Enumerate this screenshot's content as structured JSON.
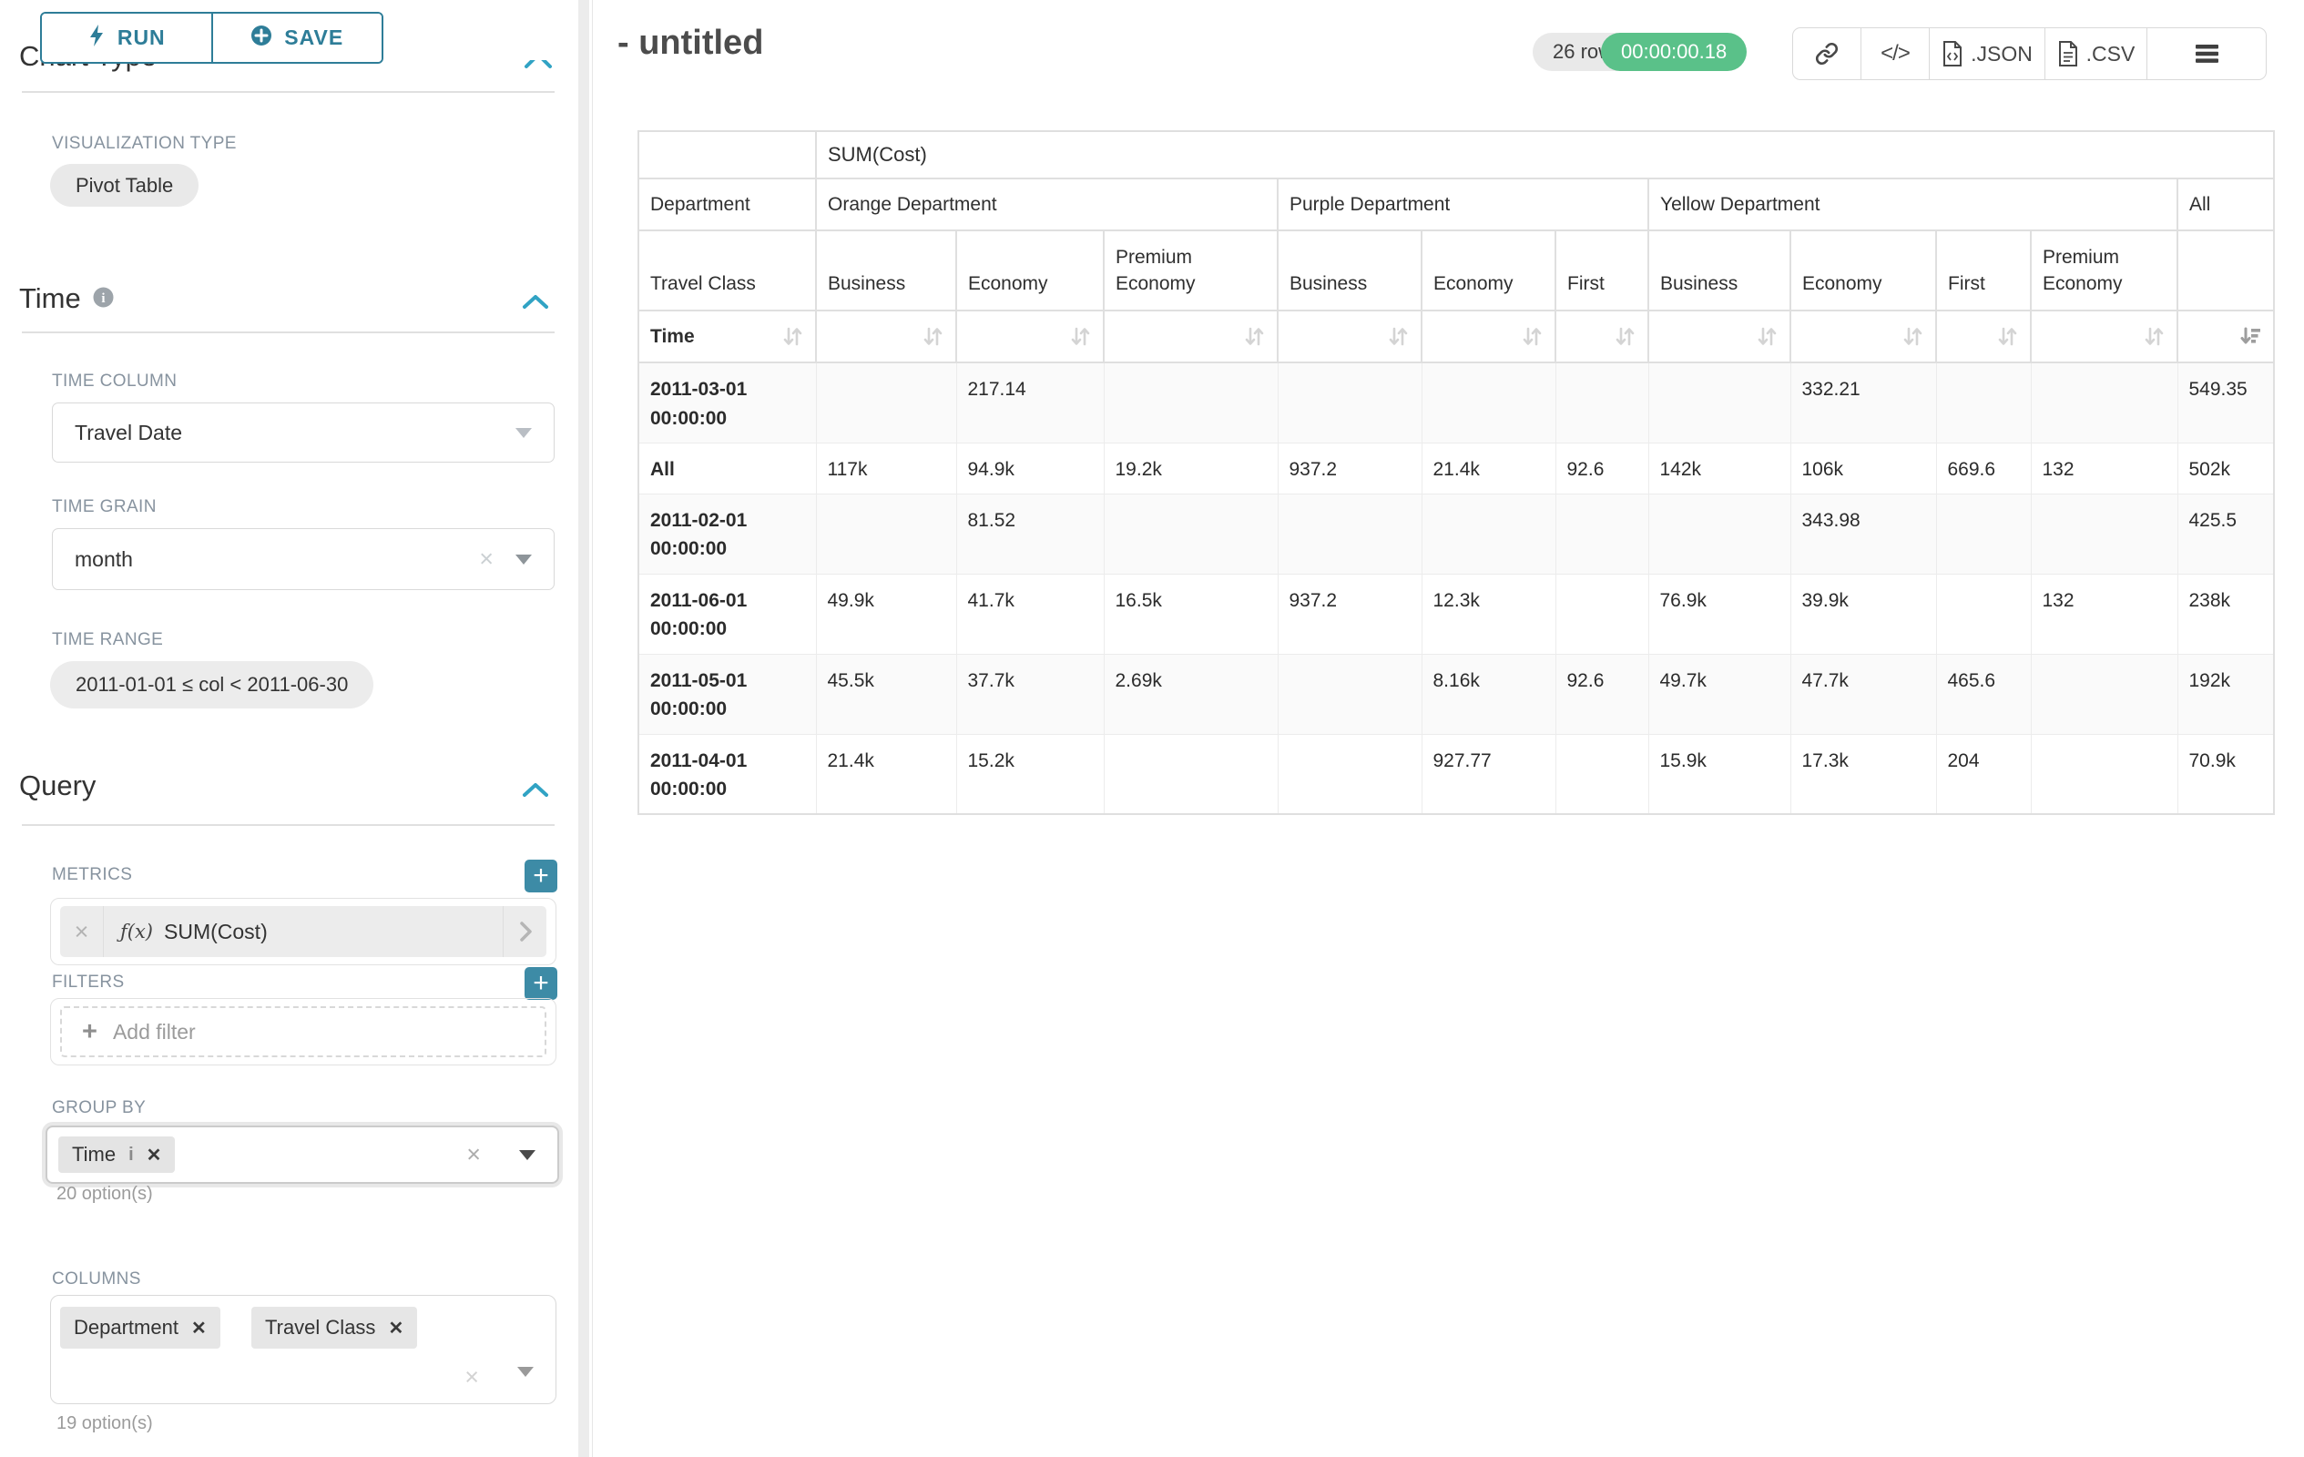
{
  "colors": {
    "accent": "#2e7d98",
    "plus_button": "#3d8ba6",
    "success_badge": "#5ac189"
  },
  "sidebar": {
    "run_label": "RUN",
    "save_label": "SAVE",
    "chart_type_heading": "Chart Type",
    "viz_type_label": "VISUALIZATION TYPE",
    "viz_type_value": "Pivot Table",
    "time_heading": "Time",
    "time_column_label": "TIME COLUMN",
    "time_column_value": "Travel Date",
    "time_grain_label": "TIME GRAIN",
    "time_grain_value": "month",
    "time_range_label": "TIME RANGE",
    "time_range_value": "2011-01-01 ≤ col < 2011-06-30",
    "query_heading": "Query",
    "metrics_label": "METRICS",
    "metric_fx": "ƒ(x)",
    "metric_value": "SUM(Cost)",
    "filters_label": "FILTERS",
    "add_filter_label": "Add filter",
    "group_by_label": "GROUP BY",
    "group_by_chip": "Time",
    "group_by_options": "20 option(s)",
    "columns_label": "COLUMNS",
    "columns_chips": [
      "Department",
      "Travel Class"
    ],
    "columns_options": "19 option(s)"
  },
  "header": {
    "title": "- untitled",
    "rows_badge": "26 rows",
    "timer": "00:00:00.18",
    "code_glyph": "</>",
    "json_label": ".JSON",
    "csv_label": ".CSV"
  },
  "chart_data": {
    "type": "table",
    "metric_header": "SUM(Cost)",
    "col_dimension": "Department",
    "sub_dimension": "Travel Class",
    "row_dimension": "Time",
    "groups": [
      {
        "label": "Orange Department",
        "cols": [
          "Business",
          "Economy",
          "Premium Economy"
        ]
      },
      {
        "label": "Purple Department",
        "cols": [
          "Business",
          "Economy",
          "First"
        ]
      },
      {
        "label": "Yellow Department",
        "cols": [
          "Business",
          "Economy",
          "First",
          "Premium Economy"
        ]
      },
      {
        "label": "All",
        "cols": [
          ""
        ]
      }
    ],
    "rows": [
      {
        "label": "2011-03-01 00:00:00",
        "cells": [
          "",
          "217.14",
          "",
          "",
          "",
          "",
          "",
          "332.21",
          "",
          "",
          "549.35"
        ]
      },
      {
        "label": "All",
        "cells": [
          "117k",
          "94.9k",
          "19.2k",
          "937.2",
          "21.4k",
          "92.6",
          "142k",
          "106k",
          "669.6",
          "132",
          "502k"
        ]
      },
      {
        "label": "2011-02-01 00:00:00",
        "cells": [
          "",
          "81.52",
          "",
          "",
          "",
          "",
          "",
          "343.98",
          "",
          "",
          "425.5"
        ]
      },
      {
        "label": "2011-06-01 00:00:00",
        "cells": [
          "49.9k",
          "41.7k",
          "16.5k",
          "937.2",
          "12.3k",
          "",
          "76.9k",
          "39.9k",
          "",
          "132",
          "238k"
        ]
      },
      {
        "label": "2011-05-01 00:00:00",
        "cells": [
          "45.5k",
          "37.7k",
          "2.69k",
          "",
          "8.16k",
          "92.6",
          "49.7k",
          "47.7k",
          "465.6",
          "",
          "192k"
        ]
      },
      {
        "label": "2011-04-01 00:00:00",
        "cells": [
          "21.4k",
          "15.2k",
          "",
          "",
          "927.77",
          "",
          "15.9k",
          "17.3k",
          "204",
          "",
          "70.9k"
        ]
      }
    ],
    "sorted_column": "All",
    "sort_direction": "desc"
  }
}
